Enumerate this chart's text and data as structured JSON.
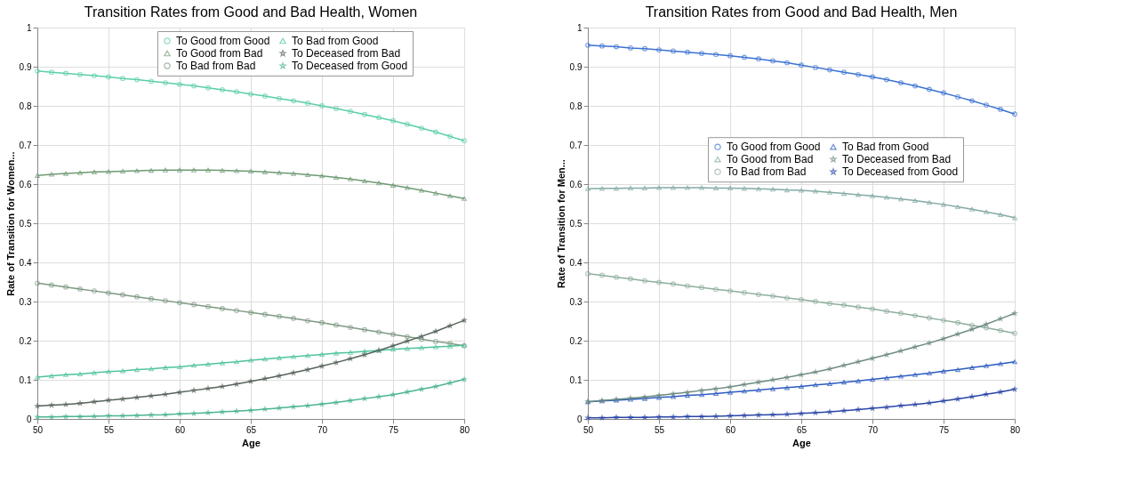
{
  "chart_data": [
    {
      "type": "line",
      "title": "Transition Rates from Good and Bad Health, Women",
      "xlabel": "Age",
      "ylabel": "Rate of Transition for Women...",
      "x": [
        50,
        51,
        52,
        53,
        54,
        55,
        56,
        57,
        58,
        59,
        60,
        61,
        62,
        63,
        64,
        65,
        66,
        67,
        68,
        69,
        70,
        71,
        72,
        73,
        74,
        75,
        76,
        77,
        78,
        79,
        80
      ],
      "xlim": [
        50,
        80
      ],
      "xticks": [
        50,
        55,
        60,
        65,
        70,
        75,
        80
      ],
      "ylim": [
        0,
        1
      ],
      "yticks": [
        0,
        0.1,
        0.2,
        0.3,
        0.4,
        0.5,
        0.6,
        0.7,
        0.8,
        0.9,
        1
      ],
      "grid": true,
      "legend": "top right",
      "line_style": "solid",
      "series": [
        {
          "name": "To Good from Good",
          "color": "#5ccfa6",
          "marker": "circle",
          "values": [
            0.889,
            0.886,
            0.883,
            0.88,
            0.877,
            0.874,
            0.87,
            0.867,
            0.863,
            0.859,
            0.855,
            0.851,
            0.846,
            0.841,
            0.836,
            0.83,
            0.825,
            0.819,
            0.813,
            0.807,
            0.8,
            0.793,
            0.786,
            0.778,
            0.77,
            0.762,
            0.753,
            0.743,
            0.733,
            0.722,
            0.711
          ]
        },
        {
          "name": "To Good from Bad",
          "color": "#6f9a74",
          "marker": "triangle",
          "values": [
            0.622,
            0.625,
            0.627,
            0.629,
            0.631,
            0.632,
            0.633,
            0.634,
            0.635,
            0.636,
            0.636,
            0.636,
            0.636,
            0.635,
            0.634,
            0.633,
            0.631,
            0.629,
            0.627,
            0.624,
            0.621,
            0.617,
            0.613,
            0.608,
            0.603,
            0.597,
            0.591,
            0.584,
            0.577,
            0.57,
            0.563
          ]
        },
        {
          "name": "To Bad from Bad",
          "color": "#7e9a82",
          "marker": "circle",
          "values": [
            0.347,
            0.342,
            0.337,
            0.332,
            0.327,
            0.322,
            0.317,
            0.312,
            0.307,
            0.302,
            0.297,
            0.292,
            0.287,
            0.282,
            0.277,
            0.272,
            0.267,
            0.262,
            0.257,
            0.251,
            0.246,
            0.24,
            0.234,
            0.228,
            0.222,
            0.216,
            0.21,
            0.204,
            0.198,
            0.193,
            0.187
          ]
        },
        {
          "name": "To Bad from Good",
          "color": "#4fc39c",
          "marker": "triangle",
          "values": [
            0.107,
            0.11,
            0.113,
            0.115,
            0.118,
            0.121,
            0.123,
            0.126,
            0.128,
            0.131,
            0.133,
            0.137,
            0.14,
            0.143,
            0.146,
            0.15,
            0.153,
            0.156,
            0.159,
            0.162,
            0.165,
            0.168,
            0.17,
            0.173,
            0.175,
            0.178,
            0.18,
            0.182,
            0.184,
            0.186,
            0.188
          ]
        },
        {
          "name": "To Deceased from Bad",
          "color": "#56645a",
          "marker": "star",
          "values": [
            0.033,
            0.035,
            0.037,
            0.04,
            0.044,
            0.048,
            0.051,
            0.055,
            0.059,
            0.063,
            0.068,
            0.073,
            0.078,
            0.083,
            0.089,
            0.096,
            0.103,
            0.11,
            0.118,
            0.126,
            0.135,
            0.144,
            0.154,
            0.164,
            0.175,
            0.187,
            0.199,
            0.211,
            0.224,
            0.238,
            0.252
          ]
        },
        {
          "name": "To Deceased from Good",
          "color": "#4cb58f",
          "marker": "star",
          "values": [
            0.005,
            0.005,
            0.006,
            0.006,
            0.007,
            0.008,
            0.008,
            0.009,
            0.01,
            0.011,
            0.013,
            0.014,
            0.016,
            0.018,
            0.02,
            0.022,
            0.025,
            0.028,
            0.031,
            0.034,
            0.038,
            0.042,
            0.047,
            0.052,
            0.057,
            0.062,
            0.069,
            0.076,
            0.083,
            0.092,
            0.101
          ]
        }
      ]
    },
    {
      "type": "line",
      "title": "Transition Rates from Good and Bad Health, Men",
      "xlabel": "Age",
      "ylabel": "Rate of Transition for Men...",
      "x": [
        50,
        51,
        52,
        53,
        54,
        55,
        56,
        57,
        58,
        59,
        60,
        61,
        62,
        63,
        64,
        65,
        66,
        67,
        68,
        69,
        70,
        71,
        72,
        73,
        74,
        75,
        76,
        77,
        78,
        79,
        80
      ],
      "xlim": [
        50,
        80
      ],
      "xticks": [
        50,
        55,
        60,
        65,
        70,
        75,
        80
      ],
      "ylim": [
        0,
        1
      ],
      "yticks": [
        0,
        0.1,
        0.2,
        0.3,
        0.4,
        0.5,
        0.6,
        0.7,
        0.8,
        0.9,
        1
      ],
      "grid": true,
      "legend": "right",
      "line_style": "solid",
      "series": [
        {
          "name": "To Good from Good",
          "color": "#3c72d2",
          "marker": "circle",
          "values": [
            0.955,
            0.953,
            0.951,
            0.948,
            0.946,
            0.943,
            0.94,
            0.937,
            0.934,
            0.931,
            0.928,
            0.924,
            0.92,
            0.915,
            0.91,
            0.904,
            0.898,
            0.892,
            0.886,
            0.88,
            0.874,
            0.867,
            0.859,
            0.851,
            0.842,
            0.833,
            0.823,
            0.813,
            0.802,
            0.791,
            0.779
          ]
        },
        {
          "name": "To Good from Bad",
          "color": "#84aaa4",
          "marker": "triangle",
          "values": [
            0.588,
            0.589,
            0.589,
            0.59,
            0.59,
            0.591,
            0.591,
            0.591,
            0.591,
            0.59,
            0.59,
            0.589,
            0.588,
            0.587,
            0.585,
            0.584,
            0.582,
            0.579,
            0.576,
            0.573,
            0.57,
            0.566,
            0.562,
            0.558,
            0.553,
            0.548,
            0.542,
            0.536,
            0.529,
            0.522,
            0.514
          ]
        },
        {
          "name": "To Bad from Bad",
          "color": "#8fae9e",
          "marker": "circle",
          "values": [
            0.371,
            0.367,
            0.362,
            0.358,
            0.353,
            0.349,
            0.345,
            0.34,
            0.336,
            0.331,
            0.327,
            0.323,
            0.318,
            0.314,
            0.309,
            0.305,
            0.3,
            0.295,
            0.291,
            0.286,
            0.281,
            0.275,
            0.27,
            0.264,
            0.258,
            0.252,
            0.246,
            0.239,
            0.233,
            0.226,
            0.219
          ]
        },
        {
          "name": "To Bad from Good",
          "color": "#2d5bc0",
          "marker": "triangle",
          "values": [
            0.044,
            0.046,
            0.048,
            0.05,
            0.052,
            0.055,
            0.057,
            0.06,
            0.062,
            0.065,
            0.068,
            0.071,
            0.074,
            0.077,
            0.08,
            0.083,
            0.087,
            0.09,
            0.094,
            0.097,
            0.101,
            0.105,
            0.109,
            0.113,
            0.117,
            0.122,
            0.126,
            0.131,
            0.136,
            0.141,
            0.146
          ]
        },
        {
          "name": "To Deceased from Bad",
          "color": "#6e8c80",
          "marker": "star",
          "values": [
            0.044,
            0.047,
            0.05,
            0.053,
            0.056,
            0.06,
            0.064,
            0.068,
            0.073,
            0.077,
            0.082,
            0.088,
            0.094,
            0.1,
            0.106,
            0.113,
            0.12,
            0.128,
            0.137,
            0.146,
            0.155,
            0.164,
            0.174,
            0.184,
            0.194,
            0.205,
            0.217,
            0.229,
            0.242,
            0.256,
            0.27
          ]
        },
        {
          "name": "To Deceased from Good",
          "color": "#2a46a6",
          "marker": "star",
          "values": [
            0.003,
            0.003,
            0.004,
            0.004,
            0.004,
            0.005,
            0.005,
            0.006,
            0.006,
            0.007,
            0.008,
            0.009,
            0.01,
            0.011,
            0.012,
            0.014,
            0.016,
            0.018,
            0.021,
            0.024,
            0.027,
            0.03,
            0.034,
            0.037,
            0.041,
            0.046,
            0.051,
            0.057,
            0.063,
            0.069,
            0.076
          ]
        }
      ]
    }
  ]
}
